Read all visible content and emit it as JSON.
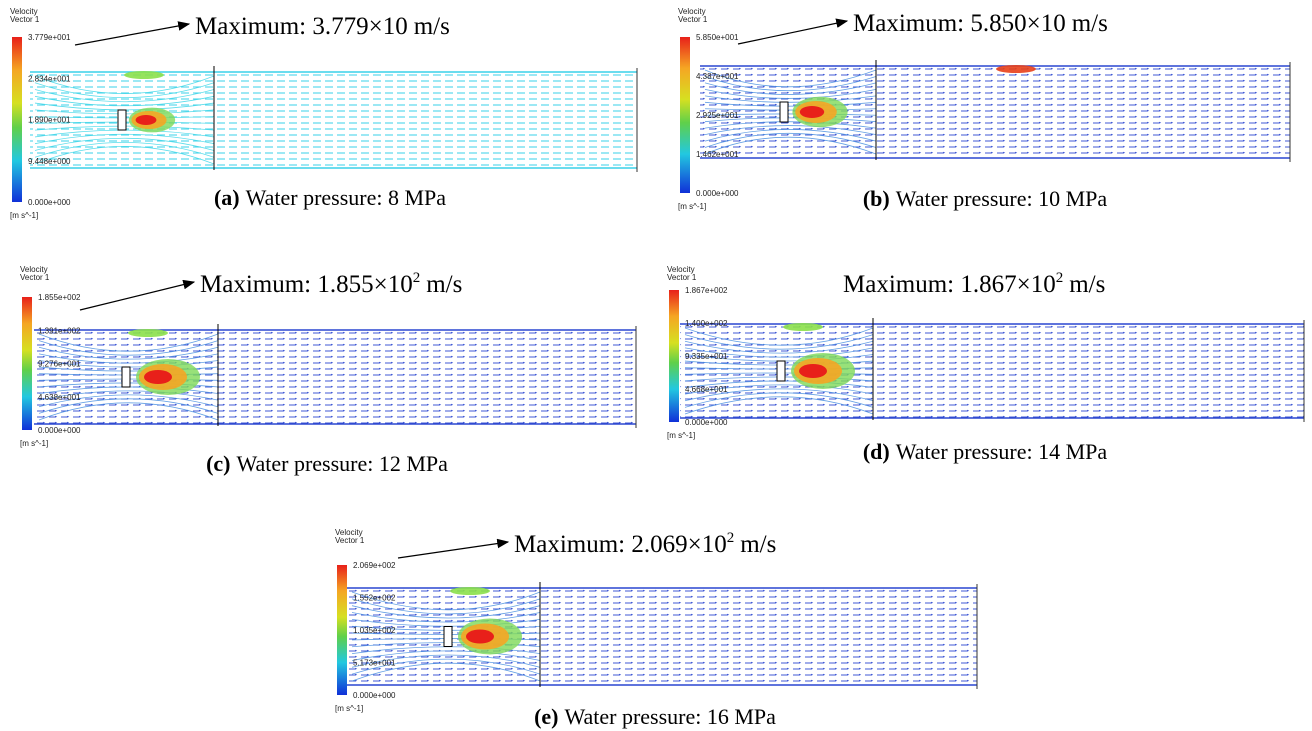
{
  "panels": [
    {
      "legend_title": "Velocity",
      "legend_subtitle": "Vector 1",
      "legend_labels": [
        "3.779e+001",
        "2.834e+001",
        "1.890e+001",
        "9.448e+000",
        "0.000e+000"
      ],
      "unit": "[m s^-1]",
      "maximum": "Maximum: 3.779×10",
      "maximum_unit": "m/s",
      "caption_label": "(a)",
      "caption": "Water pressure: 8 MPa"
    },
    {
      "legend_title": "Velocity",
      "legend_subtitle": "Vector 1",
      "legend_labels": [
        "5.850e+001",
        "4.387e+001",
        "2.925e+001",
        "1.462e+001",
        "0.000e+000"
      ],
      "unit": "[m s^-1]",
      "maximum": "Maximum: 5.850×10",
      "maximum_unit": "m/s",
      "caption_label": "(b)",
      "caption": "Water pressure: 10 MPa"
    },
    {
      "legend_title": "Velocity",
      "legend_subtitle": "Vector 1",
      "legend_labels": [
        "1.855e+002",
        "1.391e+002",
        "9.276e+001",
        "4.638e+001",
        "0.000e+000"
      ],
      "unit": "[m s^-1]",
      "maximum": "Maximum: 1.855×10",
      "maximum_exponent": "2",
      "maximum_unit": "m/s",
      "caption_label": "(c)",
      "caption": "Water pressure: 12 MPa"
    },
    {
      "legend_title": "Velocity",
      "legend_subtitle": "Vector 1",
      "legend_labels": [
        "1.867e+002",
        "1.400e+002",
        "9.335e+001",
        "4.668e+001",
        "0.000e+000"
      ],
      "unit": "[m s^-1]",
      "maximum": "Maximum: 1.867×10",
      "maximum_exponent": "2",
      "maximum_unit": "m/s",
      "caption_label": "(d)",
      "caption": "Water pressure: 14 MPa"
    },
    {
      "legend_title": "Velocity",
      "legend_subtitle": "Vector 1",
      "legend_labels": [
        "2.069e+002",
        "1.552e+002",
        "1.035e+002",
        "5.173e+001",
        "0.000e+000"
      ],
      "unit": "[m s^-1]",
      "maximum": "Maximum: 2.069×10",
      "maximum_exponent": "2",
      "maximum_unit": "m/s",
      "caption_label": "(e)",
      "caption": "Water pressure: 16 MPa"
    }
  ]
}
